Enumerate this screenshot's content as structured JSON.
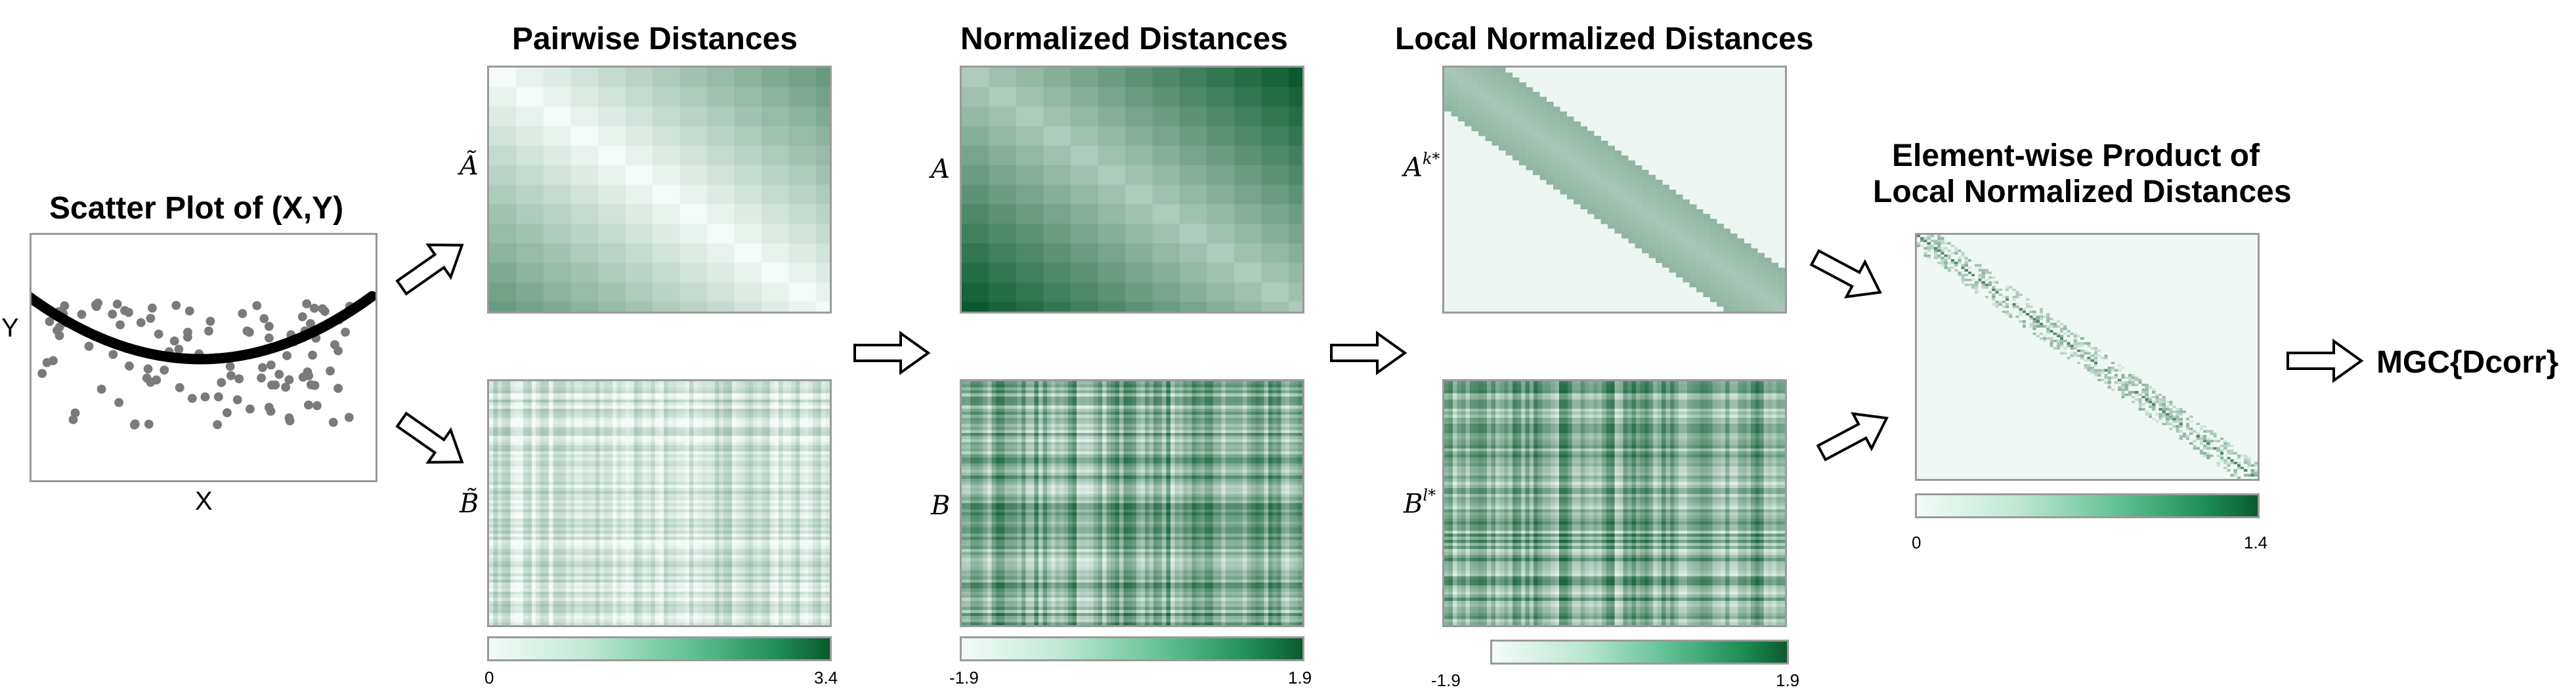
{
  "scatter": {
    "title": "Scatter Plot of (X,Y)",
    "x_label": "X",
    "y_label": "Y"
  },
  "pairwise": {
    "title": "Pairwise Distances",
    "label_a": "Ã",
    "label_b": "B̃",
    "cbar_min": "0",
    "cbar_max": "3.4"
  },
  "normalized": {
    "title": "Normalized Distances",
    "label_a": "A",
    "label_b": "B",
    "cbar_min": "-1.9",
    "cbar_max": "1.9"
  },
  "local": {
    "title": "Local Normalized Distances",
    "label_a": "A",
    "label_a_sup": "k*",
    "label_b": "B",
    "label_b_sup": "l*",
    "cbar_min": "-1.9",
    "cbar_max": "1.9"
  },
  "product": {
    "title_line1": "Element-wise Product of",
    "title_line2": "Local Normalized Distances",
    "cbar_min": "0",
    "cbar_max": "1.4"
  },
  "result": {
    "label": "MGC{Dcorr}"
  },
  "colors": {
    "green_dark": "#0a5a2f",
    "green_light": "#f4fbf8",
    "curve": "#000000",
    "points": "#7a7a7a"
  }
}
